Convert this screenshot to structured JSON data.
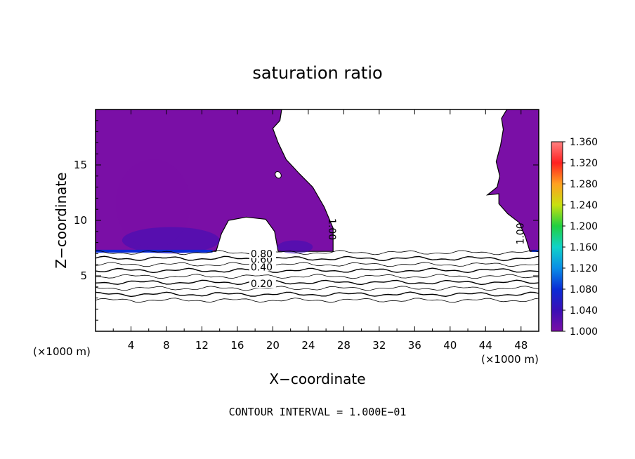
{
  "chart_data": {
    "type": "heatmap",
    "title": "saturation ratio",
    "xlabel": "X−coordinate",
    "ylabel": "Z−coordinate",
    "x_unit_left": "(×1000 m)",
    "x_unit_right": "(×1000 m)",
    "footer": "CONTOUR INTERVAL = 1.000E−01",
    "xlim": [
      0,
      50
    ],
    "ylim": [
      0,
      20
    ],
    "xticks": [
      4,
      8,
      12,
      16,
      20,
      24,
      28,
      32,
      36,
      40,
      44,
      48
    ],
    "yticks": [
      5,
      10,
      15
    ],
    "colorbar": {
      "min": 1.0,
      "max": 1.36,
      "ticks": [
        "1.000",
        "1.040",
        "1.080",
        "1.120",
        "1.160",
        "1.200",
        "1.240",
        "1.280",
        "1.320",
        "1.360"
      ],
      "colors": [
        "#7a0fa6",
        "#3a0fb6",
        "#0a2cd6",
        "#0a8ee6",
        "#10d2c8",
        "#20d040",
        "#c8e010",
        "#ffa020",
        "#ff2020",
        "#ff8080"
      ]
    },
    "contour_levels": [
      0.2,
      0.3,
      0.4,
      0.5,
      0.6,
      0.7,
      0.8,
      0.9
    ],
    "contour_labels": [
      {
        "text": "0.20",
        "x": 17.5,
        "z": 4.1
      },
      {
        "text": "0.40",
        "x": 17.5,
        "z": 5.6
      },
      {
        "text": "0.60",
        "x": 17.5,
        "z": 6.3
      },
      {
        "text": "0.80",
        "x": 17.5,
        "z": 6.8
      }
    ],
    "saturation_labels": [
      {
        "text": "1.00",
        "x": 26.3,
        "z": 9.2,
        "rotate": 90
      },
      {
        "text": "1.00",
        "x": 48.3,
        "z": 8.8,
        "rotate": -90
      }
    ],
    "saturated_region_left": [
      [
        0,
        20
      ],
      [
        21,
        20
      ],
      [
        20.8,
        19
      ],
      [
        20,
        18.3
      ],
      [
        20.6,
        17
      ],
      [
        21.5,
        15.5
      ],
      [
        23,
        14.2
      ],
      [
        24.5,
        13
      ],
      [
        25.8,
        11.2
      ],
      [
        26.8,
        9.3
      ],
      [
        26.8,
        7.2
      ],
      [
        20.6,
        7.2
      ],
      [
        20.2,
        9
      ],
      [
        19.2,
        10.1
      ],
      [
        17,
        10.3
      ],
      [
        15,
        10
      ],
      [
        14.2,
        8.8
      ],
      [
        13.6,
        7.2
      ],
      [
        0,
        7.2
      ]
    ],
    "saturated_region_right": [
      [
        46.4,
        20
      ],
      [
        50,
        20
      ],
      [
        50,
        7.2
      ],
      [
        49,
        7.2
      ],
      [
        48.5,
        8.5
      ],
      [
        47.8,
        9.8
      ],
      [
        46.5,
        10.6
      ],
      [
        45.5,
        11.5
      ],
      [
        45.5,
        12.4
      ],
      [
        44.2,
        12.3
      ],
      [
        45.3,
        13
      ],
      [
        45.6,
        14
      ],
      [
        45.2,
        15.3
      ],
      [
        45.7,
        16.8
      ],
      [
        46,
        18.2
      ],
      [
        45.8,
        19.2
      ]
    ],
    "supersaturated_patches": [
      {
        "x": 6.5,
        "z": 11.5,
        "rx": 4.2,
        "rz": 4.0,
        "level": 1.01
      },
      {
        "x": 8.5,
        "z": 8.2,
        "rx": 5.5,
        "rz": 1.2,
        "level": 1.03
      },
      {
        "x": 22.5,
        "z": 7.6,
        "rx": 2.0,
        "rz": 0.6,
        "level": 1.04
      }
    ]
  }
}
